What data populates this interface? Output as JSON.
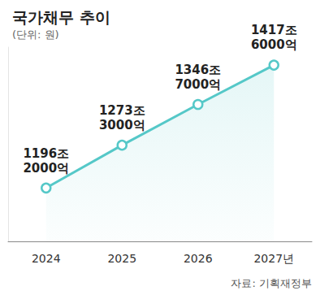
{
  "chart_data": {
    "type": "line",
    "title": "국가채무 추이",
    "subtitle": "(단위: 원)",
    "source": "자료: 기획재정부",
    "categories": [
      "2024",
      "2025",
      "2026",
      "2027년"
    ],
    "values": [
      1196.2,
      1273.3,
      1346.7,
      1417.6
    ],
    "value_labels": [
      "1196조\n2000억",
      "1273조\n3000억",
      "1346조\n7000억",
      "1417조\n6000억"
    ],
    "color": "#55c8c8",
    "ylim": [
      1100,
      1450
    ],
    "grid": false,
    "data_labels": true,
    "tick_labels": "x",
    "marker": "circle"
  }
}
